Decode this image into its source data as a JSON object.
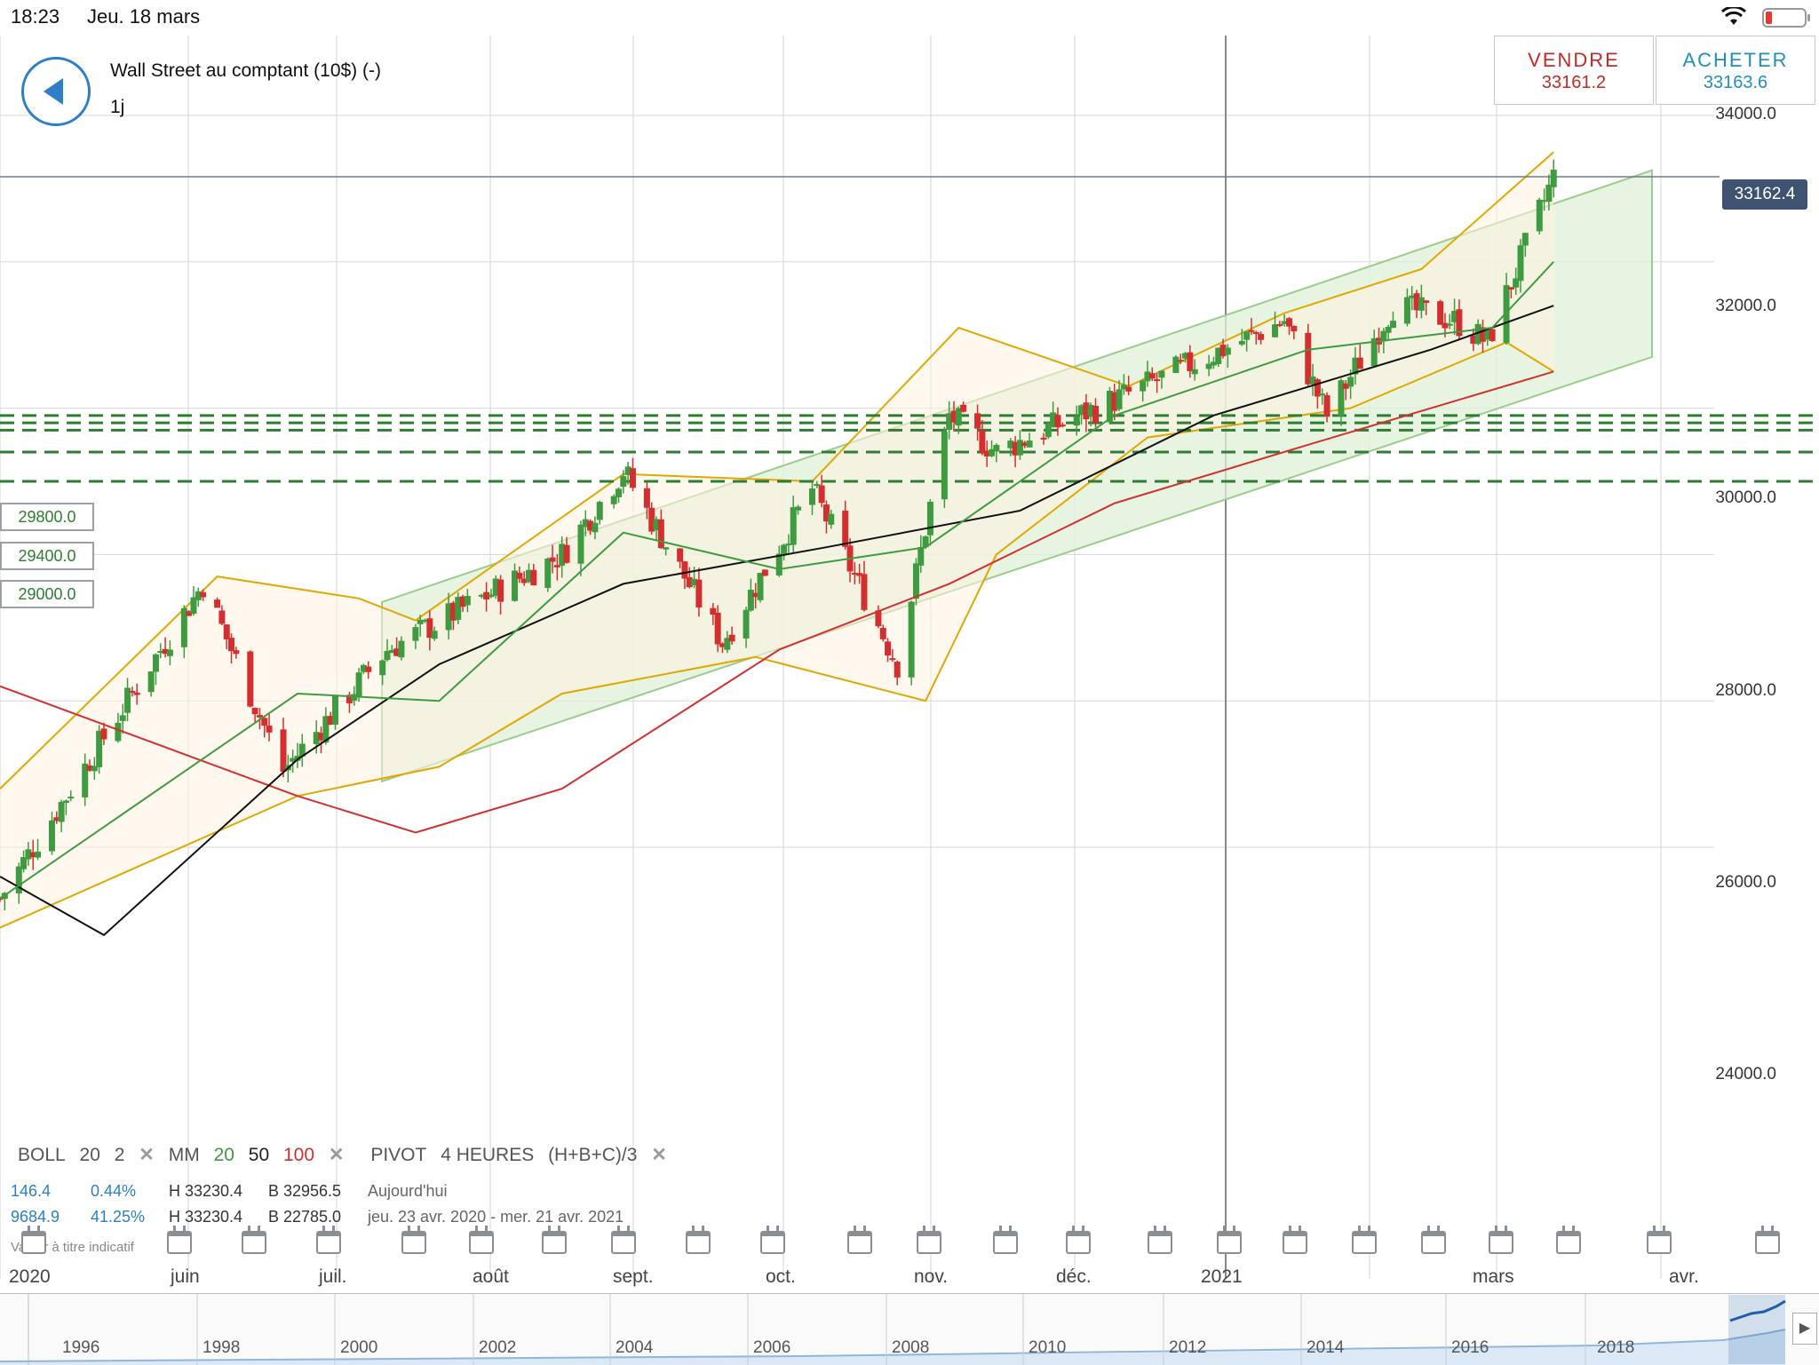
{
  "status": {
    "time": "18:23",
    "date": "Jeu. 18 mars"
  },
  "instrument": {
    "title": "Wall Street au comptant (10$) (-)",
    "timeframe": "1j"
  },
  "trade": {
    "sell_label": "VENDRE",
    "sell_price": "33161.2",
    "buy_label": "ACHETER",
    "buy_price": "33163.6"
  },
  "price_axis": [
    "34000.0",
    "32000.0",
    "30000.0",
    "28000.0",
    "26000.0",
    "24000.0"
  ],
  "last_price": "33162.4",
  "levels": [
    "29800.0",
    "29400.0",
    "29000.0"
  ],
  "indicators": {
    "boll": "BOLL",
    "boll_period": "20",
    "boll_dev": "2",
    "mm": "MM",
    "mm_20": "20",
    "mm_50": "50",
    "mm_100": "100",
    "pivot": "PIVOT",
    "pivot_period": "4 HEURES",
    "pivot_formula": "(H+B+C)/3",
    "close_glyph": "✕"
  },
  "stats": {
    "row1": {
      "change": "146.4",
      "pct": "0.44%",
      "high": "H 33230.4",
      "low": "B 32956.5",
      "period": "Aujourd'hui"
    },
    "row2": {
      "change": "9684.9",
      "pct": "41.25%",
      "high": "H 33230.4",
      "low": "B 22785.0",
      "period": "jeu. 23 avr. 2020 - mer. 21 avr. 2021"
    },
    "note": "Valeur à titre indicatif"
  },
  "months": [
    "2020",
    "juin",
    "juil.",
    "août",
    "sept.",
    "oct.",
    "nov.",
    "déc.",
    "2021",
    "mars",
    "avr."
  ],
  "navigator_years": [
    "1996",
    "1998",
    "2000",
    "2002",
    "2004",
    "2006",
    "2008",
    "2010",
    "2012",
    "2014",
    "2016",
    "2018"
  ],
  "colors": {
    "bull": "#3f9b3f",
    "bear": "#d32f2f",
    "boll": "#e0a800",
    "ma20": "#3f9b3f",
    "ma50": "#111111",
    "ma100": "#d32f2f",
    "channel": "#9ccc8c",
    "level": "#2e7d32"
  },
  "chart_data": {
    "type": "candlestick",
    "timeframe": "1j",
    "ylim": [
      23000,
      34700
    ],
    "x_range": [
      "2020-04-23",
      "2021-04-21"
    ],
    "last": 33162.4,
    "bid": 33161.2,
    "ask": 33163.6,
    "horizontal_levels": [
      29900,
      29800,
      29700,
      29400,
      29000
    ],
    "trend_anchors": [
      {
        "x": "2020-04-23",
        "y": 23300
      },
      {
        "x": "2020-06-05",
        "y": 27600
      },
      {
        "x": "2020-06-22",
        "y": 25050
      },
      {
        "x": "2020-07-14",
        "y": 26700
      },
      {
        "x": "2020-08-20",
        "y": 28000
      },
      {
        "x": "2020-09-02",
        "y": 29150
      },
      {
        "x": "2020-09-23",
        "y": 26800
      },
      {
        "x": "2020-10-12",
        "y": 28900
      },
      {
        "x": "2020-10-30",
        "y": 26500
      },
      {
        "x": "2020-11-10",
        "y": 29900
      },
      {
        "x": "2020-11-20",
        "y": 29400
      },
      {
        "x": "2020-12-18",
        "y": 30200
      },
      {
        "x": "2021-01-20",
        "y": 31200
      },
      {
        "x": "2021-01-29",
        "y": 29900
      },
      {
        "x": "2021-02-12",
        "y": 31400
      },
      {
        "x": "2021-02-25",
        "y": 31200
      },
      {
        "x": "2021-03-04",
        "y": 30900
      },
      {
        "x": "2021-03-18",
        "y": 33162
      }
    ],
    "boll_upper": [
      {
        "x": "2020-04-23",
        "y": 24800
      },
      {
        "x": "2020-06-08",
        "y": 27700
      },
      {
        "x": "2020-07-08",
        "y": 27400
      },
      {
        "x": "2020-07-20",
        "y": 27100
      },
      {
        "x": "2020-09-02",
        "y": 29100
      },
      {
        "x": "2020-10-12",
        "y": 29000
      },
      {
        "x": "2020-11-12",
        "y": 31100
      },
      {
        "x": "2020-12-18",
        "y": 30300
      },
      {
        "x": "2021-01-20",
        "y": 31300
      },
      {
        "x": "2021-02-18",
        "y": 31900
      },
      {
        "x": "2021-03-18",
        "y": 33500
      }
    ],
    "boll_lower": [
      {
        "x": "2020-04-23",
        "y": 22900
      },
      {
        "x": "2020-06-25",
        "y": 24700
      },
      {
        "x": "2020-07-25",
        "y": 25100
      },
      {
        "x": "2020-08-20",
        "y": 26100
      },
      {
        "x": "2020-09-30",
        "y": 26600
      },
      {
        "x": "2020-11-05",
        "y": 26000
      },
      {
        "x": "2020-11-20",
        "y": 28000
      },
      {
        "x": "2020-12-22",
        "y": 29600
      },
      {
        "x": "2021-02-03",
        "y": 30000
      },
      {
        "x": "2021-03-08",
        "y": 30900
      },
      {
        "x": "2021-03-18",
        "y": 30500
      }
    ],
    "ma20": [
      {
        "x": "2020-04-23",
        "y": 23300
      },
      {
        "x": "2020-06-25",
        "y": 26100
      },
      {
        "x": "2020-07-25",
        "y": 26000
      },
      {
        "x": "2020-09-02",
        "y": 28300
      },
      {
        "x": "2020-10-05",
        "y": 27800
      },
      {
        "x": "2020-11-05",
        "y": 28100
      },
      {
        "x": "2020-12-15",
        "y": 29900
      },
      {
        "x": "2021-01-25",
        "y": 30800
      },
      {
        "x": "2021-03-05",
        "y": 31100
      },
      {
        "x": "2021-03-18",
        "y": 32000
      }
    ],
    "ma50": [
      {
        "x": "2020-04-23",
        "y": 23600
      },
      {
        "x": "2020-05-15",
        "y": 22800
      },
      {
        "x": "2020-06-25",
        "y": 25200
      },
      {
        "x": "2020-07-25",
        "y": 26500
      },
      {
        "x": "2020-09-02",
        "y": 27600
      },
      {
        "x": "2020-10-15",
        "y": 28100
      },
      {
        "x": "2020-11-25",
        "y": 28600
      },
      {
        "x": "2021-01-05",
        "y": 29900
      },
      {
        "x": "2021-02-20",
        "y": 30800
      },
      {
        "x": "2021-03-18",
        "y": 31400
      }
    ],
    "ma100": [
      {
        "x": "2020-04-23",
        "y": 26200
      },
      {
        "x": "2020-06-25",
        "y": 24700
      },
      {
        "x": "2020-07-20",
        "y": 24200
      },
      {
        "x": "2020-08-20",
        "y": 24800
      },
      {
        "x": "2020-10-05",
        "y": 26700
      },
      {
        "x": "2020-11-10",
        "y": 27600
      },
      {
        "x": "2020-12-15",
        "y": 28700
      },
      {
        "x": "2021-01-25",
        "y": 29500
      },
      {
        "x": "2021-03-18",
        "y": 30500
      }
    ]
  }
}
